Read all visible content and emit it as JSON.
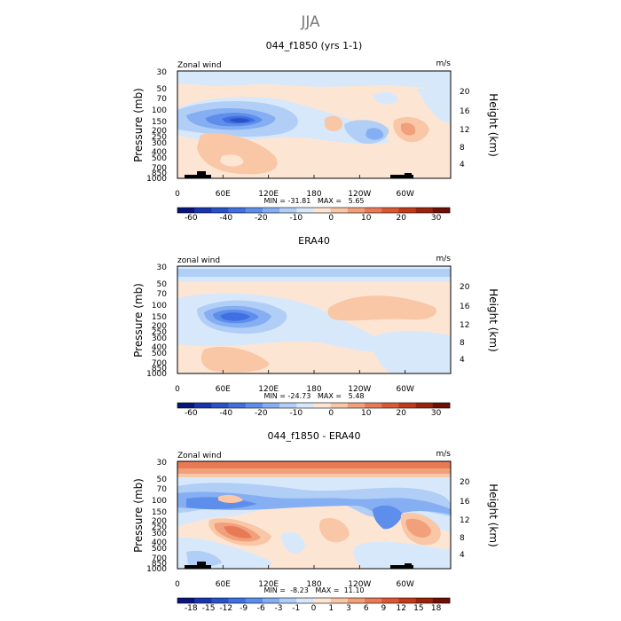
{
  "figure_title": "JJA",
  "chart_data": [
    {
      "type": "heatmap",
      "title": "044_f1850 (yrs 1-1)",
      "top_left_label": "Zonal wind",
      "top_right_label": "m/s",
      "ylabel": "Pressure (mb)",
      "ylabel_right": "Height (km)",
      "x_ticks": [
        "0",
        "60E",
        "120E",
        "180",
        "120W",
        "60W"
      ],
      "y_ticks": [
        "30",
        "50",
        "70",
        "100",
        "150",
        "200",
        "250",
        "300",
        "400",
        "500",
        "700",
        "850",
        "1000"
      ],
      "y_right_ticks": [
        "20",
        "16",
        "12",
        "8",
        "4"
      ],
      "stats": "MIN = -31.81   MAX =   5.65",
      "min": -31.81,
      "max": 5.65,
      "colorbar": {
        "labels": [
          "-60",
          "-40",
          "-20",
          "-10",
          "0",
          "10",
          "20",
          "30"
        ],
        "colors": [
          "#08157a",
          "#1934b0",
          "#2a52c8",
          "#3f6fe0",
          "#5e8eec",
          "#86aef2",
          "#b1cff6",
          "#d8e8fb",
          "#fde5d4",
          "#f9c6a6",
          "#f2a07b",
          "#e97a56",
          "#dc5834",
          "#c23a1a",
          "#9b220b",
          "#6e0e04"
        ]
      }
    },
    {
      "type": "heatmap",
      "title": "ERA40",
      "top_left_label": "zonal wind",
      "top_right_label": "m/s",
      "ylabel": "Pressure (mb)",
      "ylabel_right": "Height (km)",
      "x_ticks": [
        "0",
        "60E",
        "120E",
        "180",
        "120W",
        "60W"
      ],
      "y_ticks": [
        "30",
        "50",
        "70",
        "100",
        "150",
        "200",
        "250",
        "300",
        "400",
        "500",
        "700",
        "850",
        "1000"
      ],
      "y_right_ticks": [
        "20",
        "16",
        "12",
        "8",
        "4"
      ],
      "stats": "MIN = -24.73   MAX =   5.48",
      "min": -24.73,
      "max": 5.48,
      "colorbar": {
        "labels": [
          "-60",
          "-40",
          "-20",
          "-10",
          "0",
          "10",
          "20",
          "30"
        ],
        "colors": [
          "#08157a",
          "#1934b0",
          "#2a52c8",
          "#3f6fe0",
          "#5e8eec",
          "#86aef2",
          "#b1cff6",
          "#d8e8fb",
          "#fde5d4",
          "#f9c6a6",
          "#f2a07b",
          "#e97a56",
          "#dc5834",
          "#c23a1a",
          "#9b220b",
          "#6e0e04"
        ]
      }
    },
    {
      "type": "heatmap",
      "title": "044_f1850 - ERA40",
      "top_left_label": "Zonal wind",
      "top_right_label": "m/s",
      "ylabel": "Pressure (mb)",
      "ylabel_right": "Height (km)",
      "x_ticks": [
        "0",
        "60E",
        "120E",
        "180",
        "120W",
        "60W"
      ],
      "y_ticks": [
        "30",
        "50",
        "70",
        "100",
        "150",
        "200",
        "250",
        "300",
        "400",
        "500",
        "700",
        "850",
        "1000"
      ],
      "y_right_ticks": [
        "20",
        "16",
        "12",
        "8",
        "4"
      ],
      "stats": "MIN =  -8.23   MAX =  11.10",
      "min": -8.23,
      "max": 11.1,
      "colorbar": {
        "labels": [
          "-18",
          "-15",
          "-12",
          "-9",
          "-6",
          "-3",
          "-1",
          "0",
          "1",
          "3",
          "6",
          "9",
          "12",
          "15",
          "18"
        ],
        "colors": [
          "#08157a",
          "#1934b0",
          "#2a52c8",
          "#3f6fe0",
          "#5e8eec",
          "#86aef2",
          "#b1cff6",
          "#d8e8fb",
          "#fde5d4",
          "#f9c6a6",
          "#f2a07b",
          "#e97a56",
          "#dc5834",
          "#c23a1a",
          "#9b220b",
          "#6e0e04"
        ]
      }
    }
  ]
}
